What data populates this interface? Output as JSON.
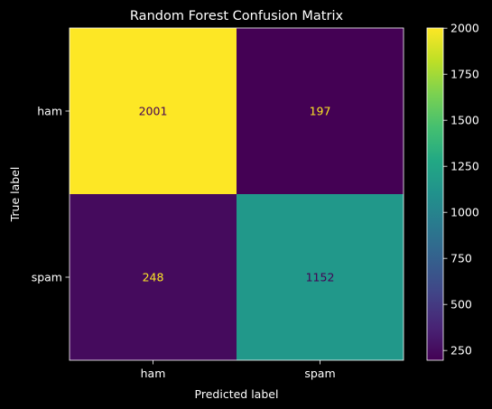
{
  "chart_data": {
    "type": "heatmap",
    "title": "Random Forest Confusion Matrix",
    "xlabel": "Predicted label",
    "ylabel": "True label",
    "x_categories": [
      "ham",
      "spam"
    ],
    "y_categories": [
      "ham",
      "spam"
    ],
    "values": [
      [
        2001,
        197
      ],
      [
        248,
        1152
      ]
    ],
    "colormap": "viridis",
    "colorbar": {
      "range": [
        197,
        2001
      ],
      "ticks": [
        "250",
        "500",
        "750",
        "1000",
        "1250",
        "1500",
        "1750",
        "2000"
      ]
    },
    "cell_text_colors": {
      "on_dark": "#fde725",
      "on_light": "#440154"
    },
    "background": "#000000",
    "text_color": "#ffffff"
  }
}
